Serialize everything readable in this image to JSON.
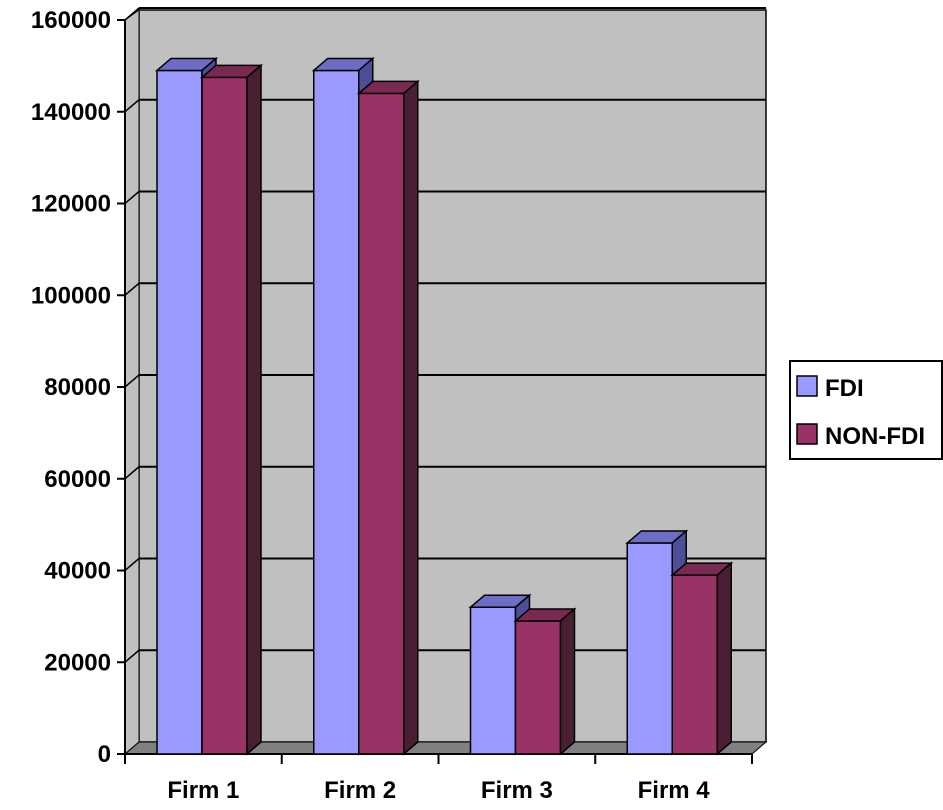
{
  "chart_data": {
    "type": "bar",
    "subtype": "3d-clustered-column",
    "categories": [
      "Firm 1",
      "Firm 2",
      "Firm 3",
      "Firm 4"
    ],
    "series": [
      {
        "name": "FDI",
        "values": [
          149000,
          149000,
          32000,
          46000
        ]
      },
      {
        "name": "NON-FDI",
        "values": [
          147500,
          144000,
          29000,
          39000
        ]
      }
    ],
    "ylim": [
      0,
      160000
    ],
    "yticks": [
      0,
      20000,
      40000,
      60000,
      80000,
      100000,
      120000,
      140000,
      160000
    ],
    "title": "",
    "xlabel": "",
    "ylabel": "",
    "grid": true,
    "legend_position": "right"
  },
  "colors": {
    "FDI": {
      "front": "#9999FF",
      "top": "#6D6DC8",
      "side": "#4D4D99"
    },
    "NON-FDI": {
      "front": "#993366",
      "top": "#7A2952",
      "side": "#4A1F33"
    },
    "wall": "#C0C0C0",
    "floor": "#808080",
    "grid": "#000000"
  }
}
